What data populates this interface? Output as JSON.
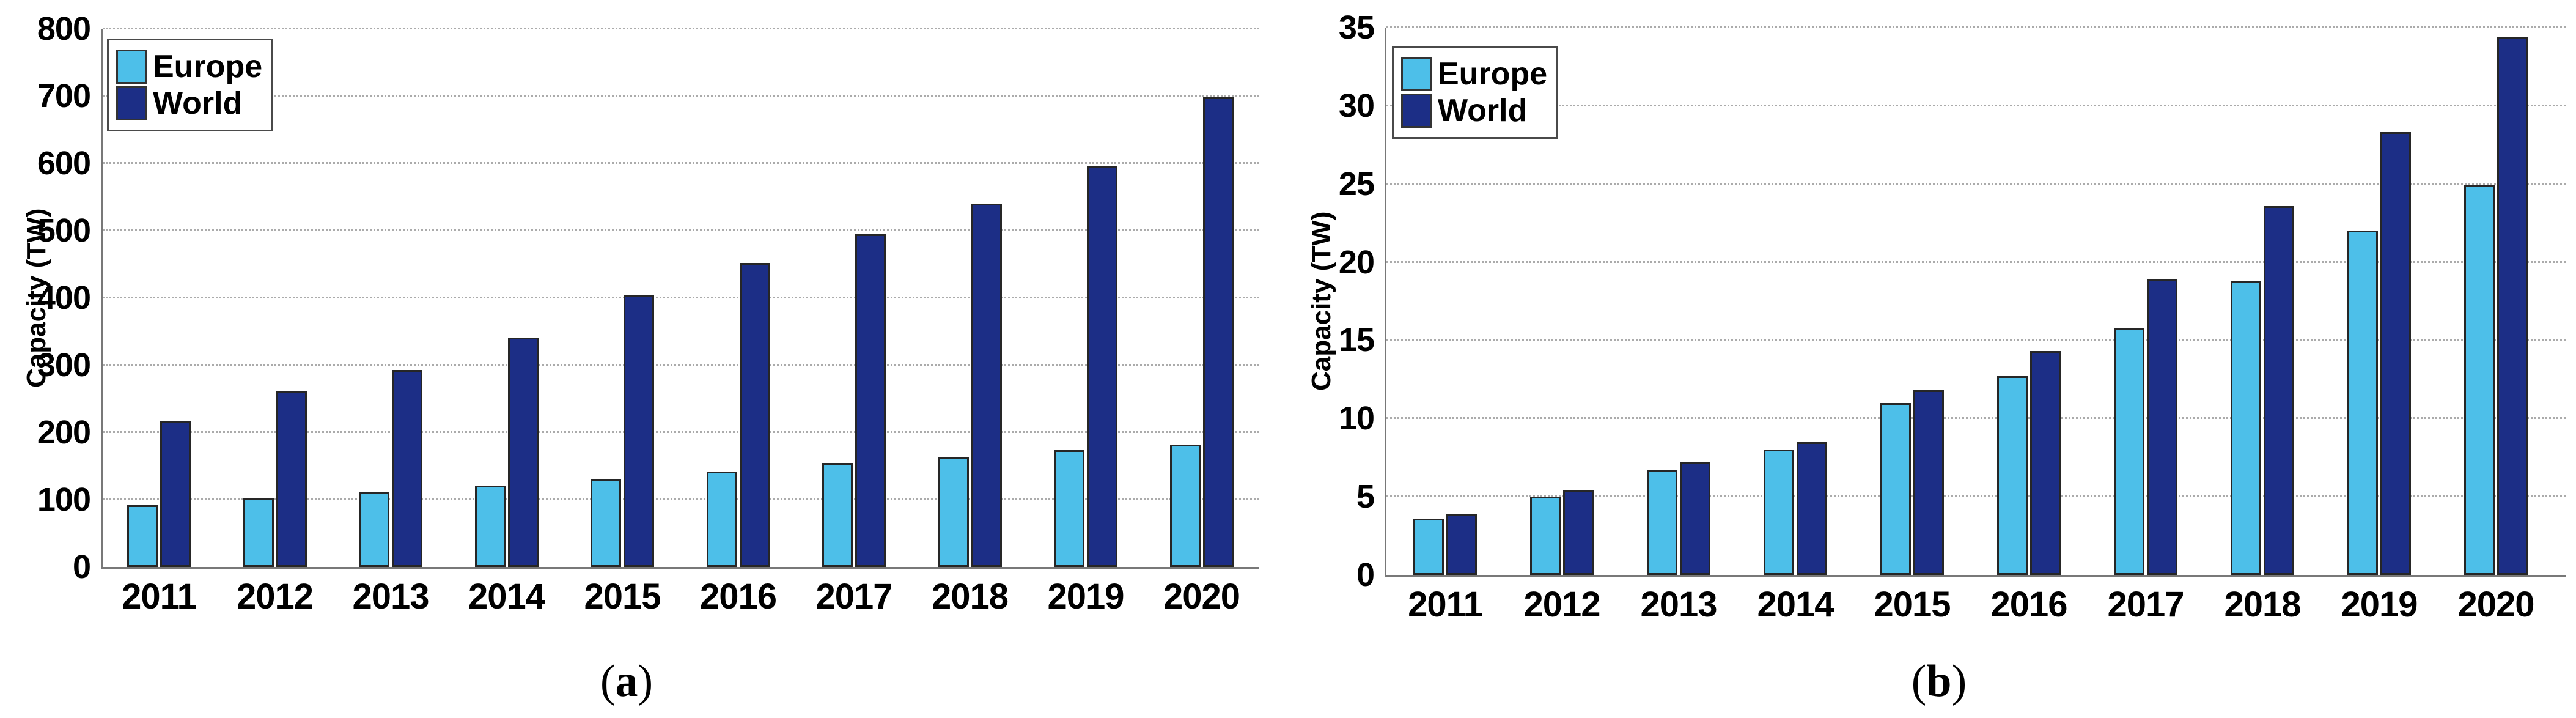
{
  "figure": {
    "background": "#ffffff",
    "panels": [
      {
        "caption": {
          "open": "(",
          "label": "a",
          "close": ")"
        }
      },
      {
        "caption": {
          "open": "(",
          "label": "b",
          "close": ")"
        }
      }
    ]
  },
  "chart_data": [
    {
      "type": "bar",
      "title": "",
      "xlabel": "",
      "ylabel": "Capacity (TW)",
      "categories": [
        "2011",
        "2012",
        "2013",
        "2014",
        "2015",
        "2016",
        "2017",
        "2018",
        "2019",
        "2020"
      ],
      "series": [
        {
          "name": "Europe",
          "color": "#4dbfe9",
          "values": [
            92,
            103,
            112,
            121,
            131,
            142,
            155,
            163,
            174,
            182
          ]
        },
        {
          "name": "World",
          "color": "#1c2e86",
          "values": [
            217,
            261,
            293,
            341,
            404,
            452,
            495,
            540,
            596,
            698
          ]
        }
      ],
      "ylim": [
        0,
        800
      ],
      "ytick_step": 100,
      "yticks": [
        0,
        100,
        200,
        300,
        400,
        500,
        600,
        700,
        800
      ],
      "grid": "horizontal-dotted",
      "legend_position": "top-left"
    },
    {
      "type": "bar",
      "title": "",
      "xlabel": "",
      "ylabel": "Capacity (TW)",
      "categories": [
        "2011",
        "2012",
        "2013",
        "2014",
        "2015",
        "2016",
        "2017",
        "2018",
        "2019",
        "2020"
      ],
      "series": [
        {
          "name": "Europe",
          "color": "#4dbfe9",
          "values": [
            3.6,
            5.0,
            6.7,
            8.0,
            11.0,
            12.7,
            15.8,
            18.8,
            22.0,
            24.9
          ]
        },
        {
          "name": "World",
          "color": "#1c2e86",
          "values": [
            3.9,
            5.4,
            7.2,
            8.5,
            11.8,
            14.3,
            18.9,
            23.6,
            28.3,
            34.4
          ]
        }
      ],
      "ylim": [
        0,
        35
      ],
      "ytick_step": 5,
      "yticks": [
        0,
        5,
        10,
        15,
        20,
        25,
        30,
        35
      ],
      "grid": "horizontal-dotted",
      "legend_position": "top-left"
    }
  ],
  "colors": {
    "europe": "#4dbfe9",
    "world": "#1c2e86",
    "bar_edge": "#262626",
    "axis": "#787878",
    "gridline": "#ababab",
    "text": "#000000",
    "legend_border": "#4a4a4a"
  }
}
